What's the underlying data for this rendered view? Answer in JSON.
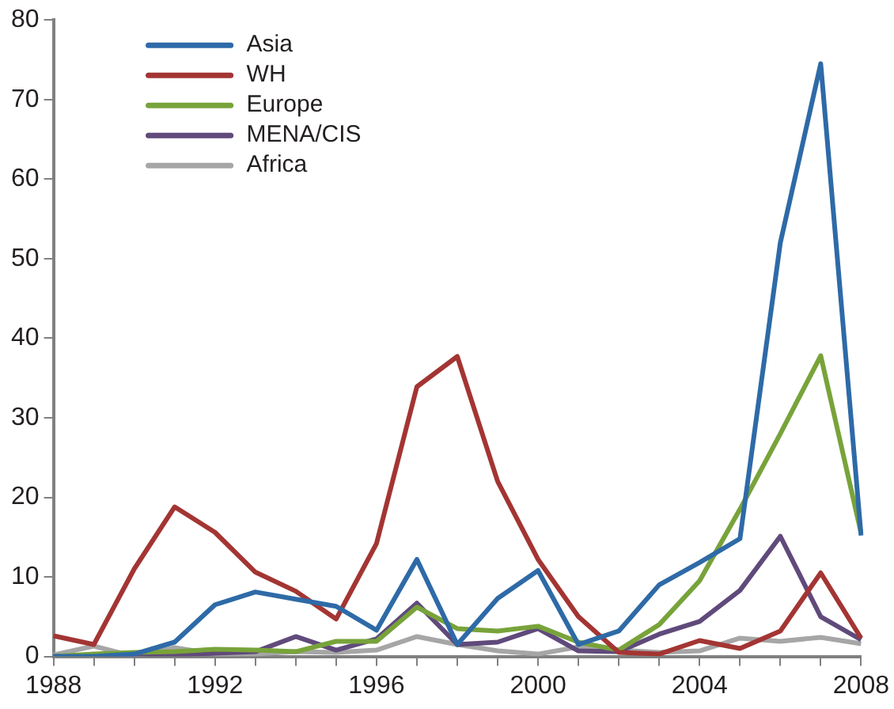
{
  "chart_data": {
    "type": "line",
    "categories": [
      "1988",
      null,
      null,
      null,
      "1992",
      null,
      null,
      null,
      "1996",
      null,
      null,
      null,
      "2000",
      null,
      null,
      null,
      "2004",
      null,
      null,
      null,
      "2008"
    ],
    "ylim": [
      0,
      80
    ],
    "yticks": [
      0,
      10,
      20,
      30,
      40,
      50,
      60,
      70,
      80
    ],
    "grid": false,
    "legend": "top left",
    "marker": "none",
    "series": [
      {
        "name": "Asia",
        "color": "#2e6aa7",
        "values": [
          0,
          0,
          0.3,
          1.8,
          6.5,
          8.1,
          7.2,
          6.3,
          3.3,
          12.2,
          1.5,
          7.3,
          10.8,
          1.5,
          3.2,
          9,
          11.8,
          14.8,
          52,
          74.5,
          15.2
        ]
      },
      {
        "name": "WH",
        "color": "#a33533",
        "values": [
          2.6,
          1.5,
          11,
          18.8,
          15.6,
          10.6,
          8.2,
          4.7,
          14.2,
          33.9,
          37.7,
          22,
          12.2,
          5,
          0.5,
          0.3,
          2,
          1,
          3.2,
          10.5,
          2.3
        ]
      },
      {
        "name": "Europe",
        "color": "#78a33a",
        "values": [
          0,
          0.3,
          0.5,
          0.6,
          0.9,
          0.8,
          0.6,
          1.9,
          1.9,
          6.2,
          3.5,
          3.2,
          3.8,
          1.8,
          0.8,
          4,
          9.5,
          18.5,
          28,
          37.8,
          15.5
        ]
      },
      {
        "name": "MENA/CIS",
        "color": "#604a7b",
        "values": [
          0,
          0,
          0,
          0.2,
          0.4,
          0.6,
          2.5,
          0.8,
          2.2,
          6.7,
          1.5,
          1.8,
          3.5,
          0.7,
          0.6,
          2.8,
          4.4,
          8.3,
          15.1,
          5,
          2.1
        ]
      },
      {
        "name": "Africa",
        "color": "#a6a6a6",
        "values": [
          0.2,
          1.3,
          0,
          1.1,
          0.3,
          0.3,
          0.6,
          0.5,
          0.8,
          2.5,
          1.5,
          0.7,
          0.3,
          1.2,
          0.8,
          0.5,
          0.7,
          2.3,
          1.9,
          2.4,
          1.6
        ]
      }
    ]
  }
}
